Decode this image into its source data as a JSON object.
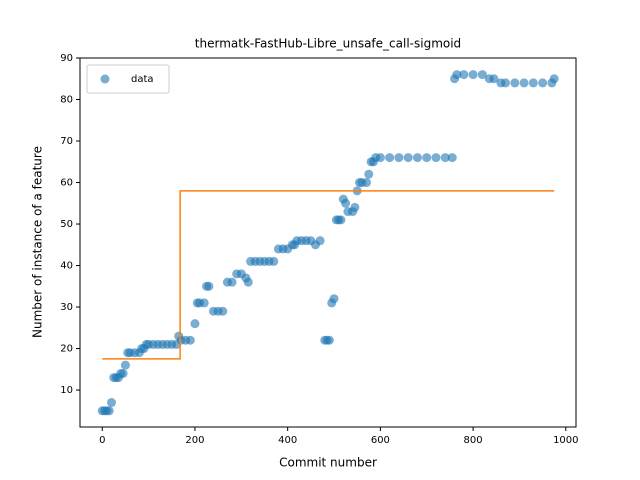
{
  "chart_data": {
    "type": "scatter",
    "title": "thermatk-FastHub-Libre_unsafe_call-sigmoid",
    "xlabel": "Commit number",
    "ylabel": "Number of instance of a feature",
    "xlim": [
      -48,
      1022
    ],
    "ylim": [
      1.1,
      90
    ],
    "xticks": [
      0,
      200,
      400,
      600,
      800,
      1000
    ],
    "yticks": [
      10,
      20,
      30,
      40,
      50,
      60,
      70,
      80,
      90
    ],
    "legend": "upper left",
    "series": [
      {
        "name": "data",
        "color": "#1f77b4",
        "type": "scatter",
        "x": [
          0,
          5,
          10,
          15,
          20,
          25,
          30,
          35,
          40,
          45,
          50,
          55,
          60,
          70,
          80,
          85,
          90,
          95,
          100,
          110,
          120,
          130,
          140,
          150,
          160,
          165,
          170,
          180,
          190,
          200,
          205,
          210,
          220,
          225,
          230,
          240,
          250,
          260,
          270,
          280,
          290,
          300,
          310,
          315,
          320,
          330,
          340,
          350,
          360,
          370,
          380,
          390,
          400,
          410,
          415,
          420,
          430,
          440,
          450,
          460,
          470,
          480,
          485,
          490,
          495,
          500,
          505,
          510,
          515,
          520,
          525,
          530,
          540,
          545,
          550,
          555,
          560,
          570,
          575,
          580,
          585,
          590,
          600,
          620,
          640,
          660,
          680,
          700,
          720,
          740,
          755,
          760,
          765,
          780,
          800,
          820,
          835,
          845,
          860,
          870,
          890,
          910,
          930,
          950,
          970,
          975
        ],
        "values": [
          5,
          5,
          5,
          5,
          7,
          13,
          13,
          13,
          14,
          14,
          16,
          19,
          19,
          19,
          19,
          20,
          20,
          21,
          21,
          21,
          21,
          21,
          21,
          21,
          21,
          23,
          22,
          22,
          22,
          26,
          31,
          31,
          31,
          35,
          35,
          29,
          29,
          29,
          36,
          36,
          38,
          38,
          37,
          36,
          41,
          41,
          41,
          41,
          41,
          41,
          44,
          44,
          44,
          45,
          45,
          46,
          46,
          46,
          46,
          45,
          46,
          22,
          22,
          22,
          31,
          32,
          51,
          51,
          51,
          56,
          55,
          53,
          53,
          54,
          58,
          60,
          60,
          60,
          62,
          65,
          65,
          66,
          66,
          66,
          66,
          66,
          66,
          66,
          66,
          66,
          66,
          85,
          86,
          86,
          86,
          86,
          85,
          85,
          84,
          84,
          84,
          84,
          84,
          84,
          84,
          85
        ]
      },
      {
        "color": "#ff7f0e",
        "type": "line",
        "x": [
          0,
          168,
          168,
          975
        ],
        "values": [
          17.5,
          17.5,
          58,
          58
        ]
      }
    ]
  }
}
